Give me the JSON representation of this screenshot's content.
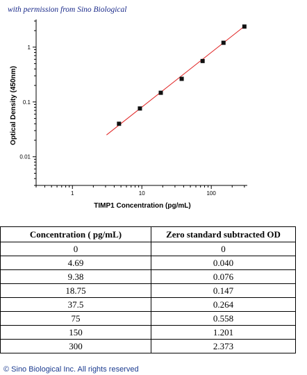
{
  "permission_note": "with permission from Sino Biological",
  "chart_data": {
    "type": "scatter",
    "xlabel": "TIMP1 Concentration (pg/mL)",
    "ylabel": "Optical Density (450nm)",
    "x_scale": "log",
    "y_scale": "log",
    "xlim": [
      0.3,
      330
    ],
    "ylim": [
      0.003,
      3.2
    ],
    "x_ticks": [
      {
        "value": 1,
        "label": "1"
      },
      {
        "value": 10,
        "label": "10"
      },
      {
        "value": 100,
        "label": "100"
      }
    ],
    "y_ticks": [
      {
        "value": 1,
        "label": "1"
      },
      {
        "value": 0.1,
        "label": "0.1"
      },
      {
        "value": 0.01,
        "label": "0.01"
      }
    ],
    "grid": false,
    "points": {
      "x": [
        4.69,
        9.38,
        18.75,
        37.5,
        75,
        150,
        300
      ],
      "y": [
        0.04,
        0.076,
        0.147,
        0.264,
        0.558,
        1.201,
        2.373
      ]
    },
    "fit_line": {
      "x": [
        3.1,
        300
      ],
      "y": [
        0.025,
        2.4
      ],
      "color": "#e02020"
    },
    "point_color": "#111111"
  },
  "table": {
    "headers": [
      "Concentration ( pg/mL)",
      "Zero standard subtracted OD"
    ],
    "rows": [
      [
        "0",
        "0"
      ],
      [
        "4.69",
        "0.040"
      ],
      [
        "9.38",
        "0.076"
      ],
      [
        "18.75",
        "0.147"
      ],
      [
        "37.5",
        "0.264"
      ],
      [
        "75",
        "0.558"
      ],
      [
        "150",
        "1.201"
      ],
      [
        "300",
        "2.373"
      ]
    ]
  },
  "copyright": "© Sino Biological Inc. All rights reserved"
}
